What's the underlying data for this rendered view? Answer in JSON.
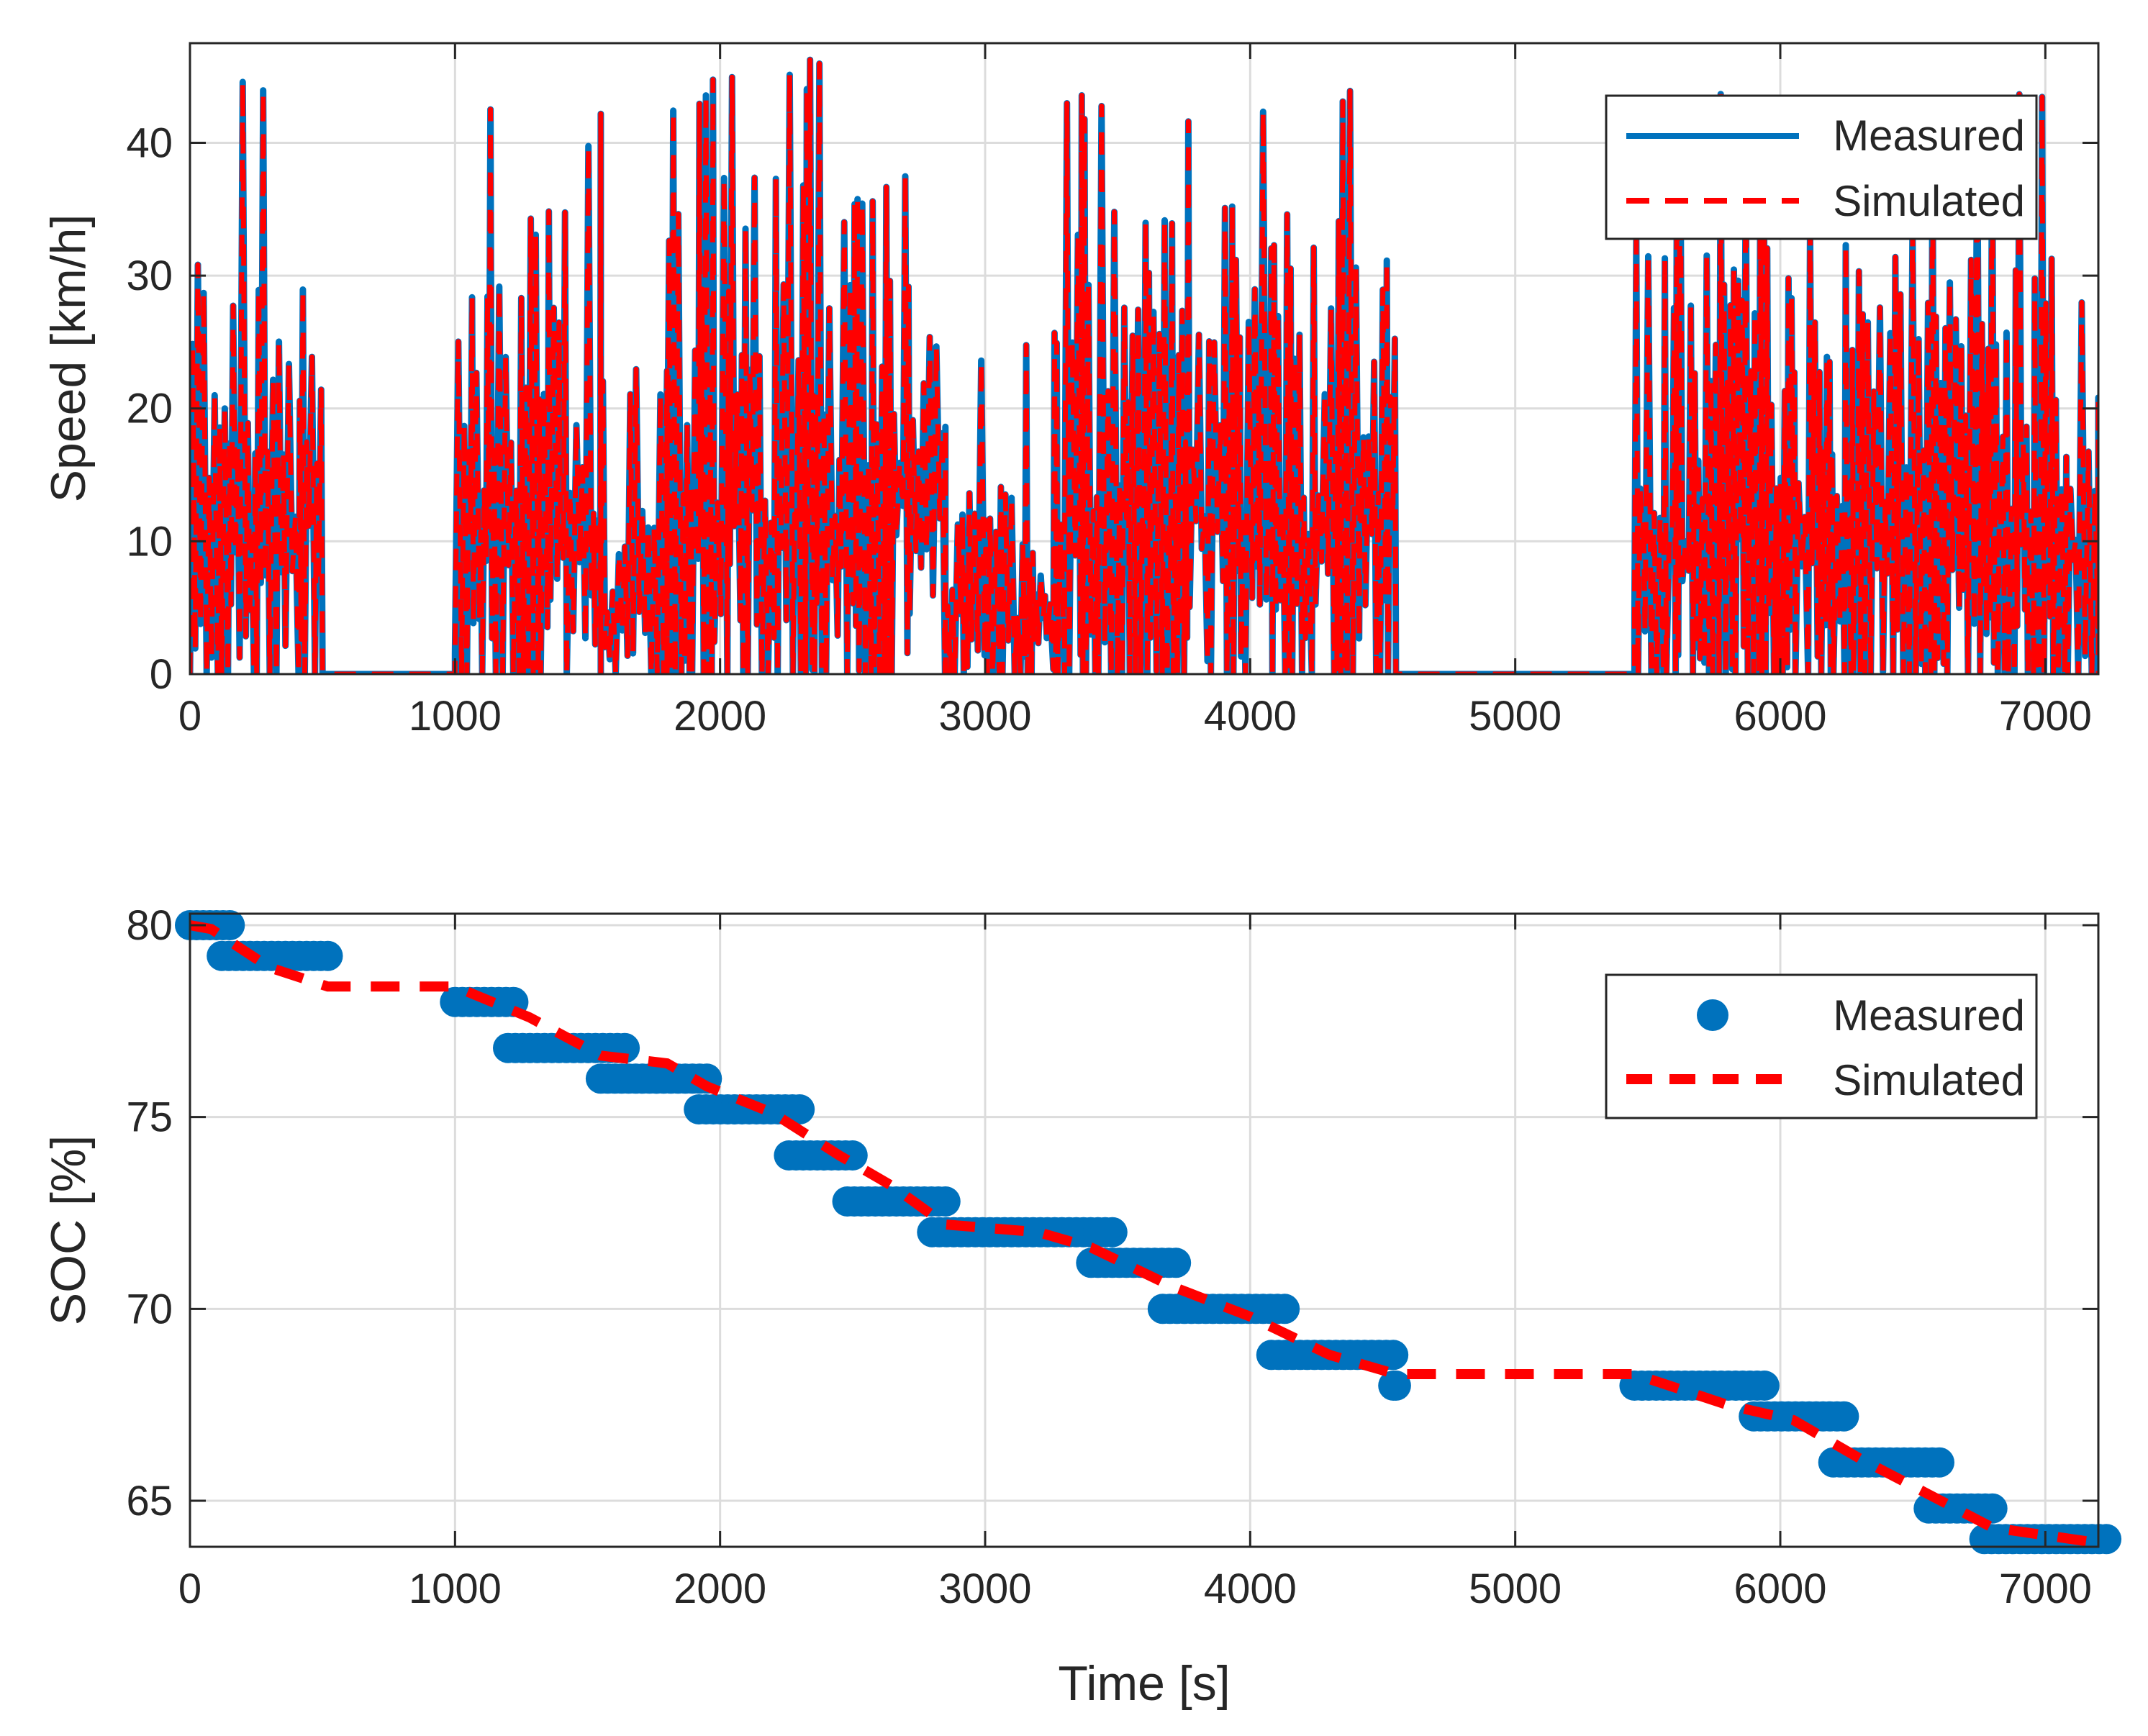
{
  "chart_data": [
    {
      "type": "line",
      "xlabel": "",
      "ylabel": "Speed [km/h]",
      "xlim": [
        0,
        7200
      ],
      "ylim": [
        0,
        47.5
      ],
      "xticks": [
        0,
        1000,
        2000,
        3000,
        4000,
        5000,
        6000,
        7000
      ],
      "yticks": [
        0,
        10,
        20,
        30,
        40
      ],
      "grid": true,
      "legend_position": "top-right",
      "colors": {
        "measured": "#0072BD",
        "simulated": "#FF0000"
      },
      "series": [
        {
          "name": "Measured",
          "style": "solid"
        },
        {
          "name": "Simulated",
          "style": "dashed"
        }
      ],
      "trace_segments": [
        {
          "t_start": 0,
          "t_end": 500,
          "peak_mean": 28,
          "peak_max": 46
        },
        {
          "t_start": 500,
          "t_end": 1000,
          "peak_mean": 0,
          "peak_max": 0
        },
        {
          "t_start": 1000,
          "t_end": 1550,
          "peak_mean": 30,
          "peak_max": 43
        },
        {
          "t_start": 1550,
          "t_end": 1800,
          "peak_mean": 12,
          "peak_max": 23
        },
        {
          "t_start": 1800,
          "t_end": 2850,
          "peak_mean": 32,
          "peak_max": 47
        },
        {
          "t_start": 2850,
          "t_end": 3300,
          "peak_mean": 12,
          "peak_max": 26
        },
        {
          "t_start": 3300,
          "t_end": 4550,
          "peak_mean": 30,
          "peak_max": 46
        },
        {
          "t_start": 4550,
          "t_end": 5450,
          "peak_mean": 0,
          "peak_max": 0
        },
        {
          "t_start": 5450,
          "t_end": 7200,
          "peak_mean": 28,
          "peak_max": 44
        }
      ]
    },
    {
      "type": "scatter",
      "xlabel": "Time [s]",
      "ylabel": "SOC [%]",
      "xlim": [
        0,
        7200
      ],
      "ylim": [
        63.8,
        80.3
      ],
      "xticks": [
        0,
        1000,
        2000,
        3000,
        4000,
        5000,
        6000,
        7000
      ],
      "yticks": [
        65,
        70,
        75,
        80
      ],
      "grid": true,
      "legend_position": "top-right",
      "colors": {
        "measured": "#0072BD",
        "simulated": "#FF0000"
      },
      "series": [
        {
          "name": "Measured",
          "style": "markers",
          "steps": [
            {
              "x0": 0,
              "x1": 150,
              "y": 80.0
            },
            {
              "x0": 120,
              "x1": 520,
              "y": 79.2
            },
            {
              "x0": 1000,
              "x1": 1220,
              "y": 78.0
            },
            {
              "x0": 1200,
              "x1": 1640,
              "y": 76.8
            },
            {
              "x0": 1550,
              "x1": 1760,
              "y": 76.0
            },
            {
              "x0": 1760,
              "x1": 1950,
              "y": 76.0
            },
            {
              "x0": 1920,
              "x1": 2300,
              "y": 75.2
            },
            {
              "x0": 2260,
              "x1": 2500,
              "y": 74.0
            },
            {
              "x0": 2480,
              "x1": 2850,
              "y": 72.8
            },
            {
              "x0": 2800,
              "x1": 3480,
              "y": 72.0
            },
            {
              "x0": 3400,
              "x1": 3720,
              "y": 71.2
            },
            {
              "x0": 3670,
              "x1": 4130,
              "y": 70.0
            },
            {
              "x0": 4080,
              "x1": 4540,
              "y": 68.8
            },
            {
              "x0": 4540,
              "x1": 4550,
              "y": 68.0
            },
            {
              "x0": 5450,
              "x1": 5940,
              "y": 68.0
            },
            {
              "x0": 5900,
              "x1": 6240,
              "y": 67.2
            },
            {
              "x0": 6200,
              "x1": 6600,
              "y": 66.0
            },
            {
              "x0": 6560,
              "x1": 6800,
              "y": 64.8
            },
            {
              "x0": 6770,
              "x1": 7230,
              "y": 64.0
            }
          ]
        },
        {
          "name": "Simulated",
          "style": "dashed",
          "x": [
            0,
            80,
            300,
            520,
            1000,
            1280,
            1550,
            1800,
            1950,
            2200,
            2450,
            2650,
            2850,
            3200,
            3400,
            3700,
            4000,
            4300,
            4550,
            5450,
            5800,
            6050,
            6300,
            6550,
            6800,
            7200
          ],
          "y": [
            80.0,
            79.9,
            78.9,
            78.4,
            78.4,
            77.6,
            76.6,
            76.4,
            75.8,
            75.1,
            74.0,
            73.2,
            72.2,
            72.0,
            71.6,
            70.6,
            69.8,
            68.8,
            68.3,
            68.3,
            67.5,
            67.1,
            66.1,
            65.2,
            64.3,
            63.9
          ]
        }
      ]
    }
  ]
}
